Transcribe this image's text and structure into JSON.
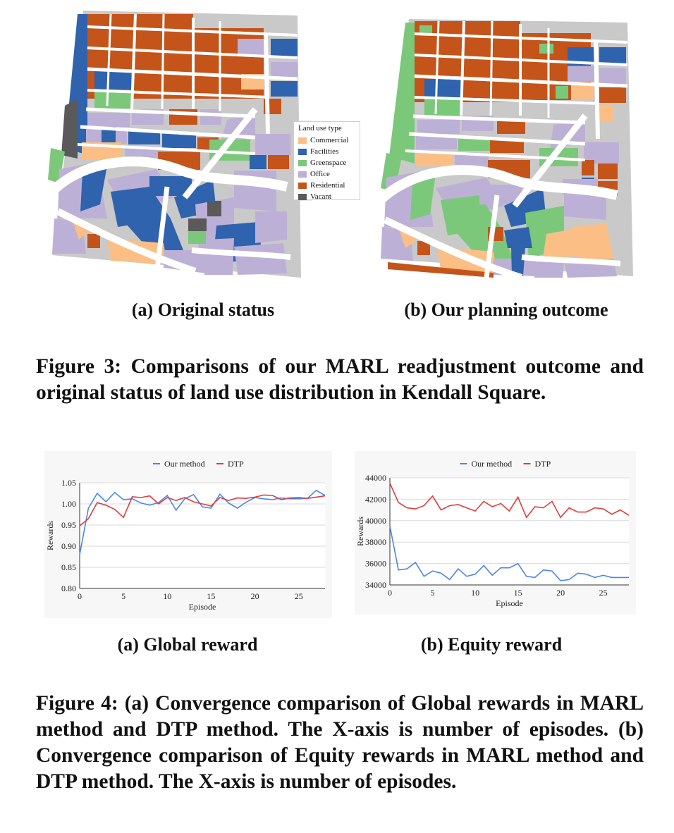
{
  "figure3": {
    "map_a": {
      "subcaption": "(a) Original status",
      "legend": {
        "title": "Land use type",
        "items": [
          {
            "label": "Commercial",
            "color": "#fbbf85"
          },
          {
            "label": "Facilities",
            "color": "#2f63ae"
          },
          {
            "label": "Greenspace",
            "color": "#7cc87a"
          },
          {
            "label": "Office",
            "color": "#bdb0d6"
          },
          {
            "label": "Residential",
            "color": "#c4541a"
          },
          {
            "label": "Vacant",
            "color": "#5a5a5a"
          }
        ]
      }
    },
    "map_b": {
      "subcaption": "(b) Our planning outcome"
    },
    "caption": "Figure 3: Comparisons of our MARL readjustment outcome and original status of land use distribution in Kendall Square."
  },
  "figure4": {
    "caption": "Figure 4: (a) Convergence comparison of Global rewards in MARL method and DTP method. The X-axis is number of episodes. (b) Convergence comparison of Equity rewards in MARL method and DTP method. The X-axis is number of episodes."
  },
  "chart_data": [
    {
      "type": "line",
      "subcaption": "(a) Global reward",
      "xlabel": "Episode",
      "ylabel": "Rewards",
      "xlim": [
        0,
        28
      ],
      "ylim": [
        0.8,
        1.05
      ],
      "xticks": [
        "0",
        "5",
        "10",
        "15",
        "20",
        "25"
      ],
      "yticks": [
        "0.80",
        "0.85",
        "0.90",
        "0.95",
        "1.00",
        "1.05"
      ],
      "legend_position": "top-center",
      "x": [
        0,
        1,
        2,
        3,
        4,
        5,
        6,
        7,
        8,
        9,
        10,
        11,
        12,
        13,
        14,
        15,
        16,
        17,
        18,
        19,
        20,
        21,
        22,
        23,
        24,
        25,
        26,
        27,
        28
      ],
      "series": [
        {
          "name": "Our method",
          "color": "#4a86e8",
          "values": [
            0.88,
            0.99,
            1.025,
            1.005,
            1.027,
            1.01,
            1.012,
            1.002,
            0.997,
            1.003,
            1.02,
            0.985,
            1.012,
            1.022,
            0.993,
            0.99,
            1.023,
            1.002,
            0.99,
            1.004,
            1.015,
            1.012,
            1.01,
            1.014,
            1.012,
            1.012,
            1.013,
            1.032,
            1.02
          ]
        },
        {
          "name": "DTP",
          "color": "#e23b3b",
          "values": [
            0.948,
            0.965,
            1.003,
            0.997,
            0.987,
            0.968,
            1.017,
            1.015,
            1.019,
            1.0,
            1.015,
            1.008,
            1.015,
            1.005,
            1.0,
            0.995,
            1.015,
            1.008,
            1.014,
            1.013,
            1.016,
            1.021,
            1.02,
            1.01,
            1.014,
            1.015,
            1.013,
            1.016,
            1.019
          ]
        }
      ]
    },
    {
      "type": "line",
      "subcaption": "(b) Equity reward",
      "xlabel": "Episode",
      "ylabel": "Rewards",
      "xlim": [
        0,
        28
      ],
      "ylim": [
        34000,
        44000
      ],
      "xticks": [
        "0",
        "5",
        "10",
        "15",
        "20",
        "25"
      ],
      "yticks": [
        "34000",
        "36000",
        "38000",
        "40000",
        "42000",
        "44000"
      ],
      "legend_position": "top-center",
      "x": [
        0,
        1,
        2,
        3,
        4,
        5,
        6,
        7,
        8,
        9,
        10,
        11,
        12,
        13,
        14,
        15,
        16,
        17,
        18,
        19,
        20,
        21,
        22,
        23,
        24,
        25,
        26,
        27,
        28
      ],
      "series": [
        {
          "name": "Our method",
          "color": "#4a86e8",
          "values": [
            39500,
            35400,
            35500,
            36100,
            34800,
            35300,
            35100,
            34500,
            35500,
            34800,
            35000,
            35800,
            34900,
            35600,
            35600,
            36000,
            34800,
            34700,
            35400,
            35300,
            34400,
            34500,
            35100,
            35000,
            34700,
            34900,
            34700,
            34700,
            34700
          ]
        },
        {
          "name": "DTP",
          "color": "#e23b3b",
          "values": [
            43500,
            41700,
            41200,
            41100,
            41400,
            42300,
            41000,
            41400,
            41500,
            41200,
            40900,
            41800,
            41300,
            41600,
            40900,
            42200,
            40300,
            41300,
            41200,
            41800,
            40300,
            41200,
            40800,
            40800,
            41200,
            41100,
            40600,
            41000,
            40500
          ]
        }
      ]
    }
  ]
}
